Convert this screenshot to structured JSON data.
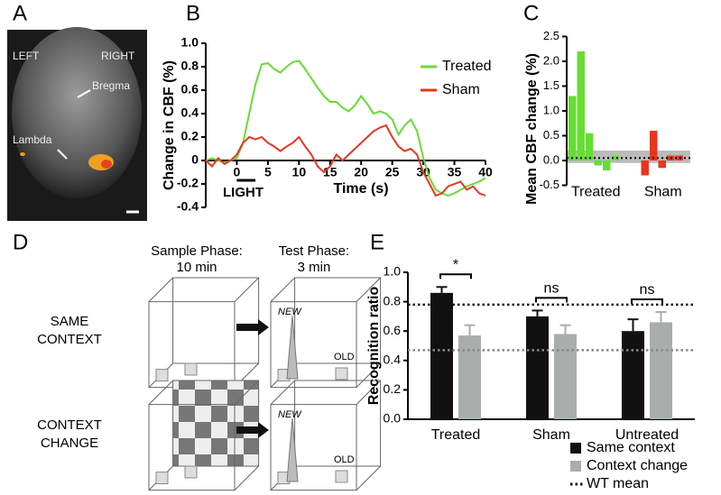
{
  "panel_labels": [
    "A",
    "B",
    "C",
    "D",
    "E"
  ],
  "panel_a": {
    "left": "LEFT",
    "right": "RIGHT",
    "bregma": "Bregma",
    "lambda": "Lambda"
  },
  "panel_d": {
    "sample_phase": [
      "Sample Phase:",
      "10 min"
    ],
    "test_phase": [
      "Test Phase:",
      "3 min"
    ],
    "same_context": [
      "SAME",
      "CONTEXT"
    ],
    "context_change": [
      "CONTEXT",
      "CHANGE"
    ],
    "new": "NEW",
    "old": "OLD"
  },
  "chart_data": [
    {
      "type": "line",
      "ylabel": "Change in CBF (%)",
      "xlabel": "Time (s)",
      "annotation": "LIGHT",
      "light_period": [
        0,
        3
      ],
      "x": [
        -5,
        -4,
        -3,
        -2,
        -1,
        0,
        1,
        2,
        3,
        4,
        5,
        6,
        7,
        8,
        9,
        10,
        11,
        12,
        13,
        14,
        15,
        16,
        17,
        18,
        19,
        20,
        21,
        22,
        23,
        24,
        25,
        26,
        27,
        28,
        29,
        30,
        31,
        32,
        33,
        34,
        35,
        36,
        37,
        38,
        39,
        40
      ],
      "series": [
        {
          "name": "Treated",
          "color": "#66dd33",
          "values": [
            0,
            0.02,
            0,
            -0.02,
            0,
            0.02,
            0.15,
            0.4,
            0.65,
            0.82,
            0.83,
            0.78,
            0.75,
            0.8,
            0.84,
            0.85,
            0.78,
            0.7,
            0.62,
            0.55,
            0.5,
            0.5,
            0.45,
            0.42,
            0.47,
            0.55,
            0.48,
            0.4,
            0.42,
            0.4,
            0.35,
            0.22,
            0.3,
            0.35,
            0.25,
            0.02,
            -0.15,
            -0.25,
            -0.28,
            -0.3,
            -0.28,
            -0.25,
            -0.22,
            -0.2,
            -0.18,
            -0.15
          ]
        },
        {
          "name": "Sham",
          "color": "#e8361e",
          "values": [
            0,
            -0.05,
            0.02,
            -0.03,
            0,
            0.05,
            0.15,
            0.2,
            0.18,
            0.2,
            0.15,
            0.12,
            0.08,
            0.12,
            0.15,
            0.2,
            0.12,
            0.05,
            -0.05,
            -0.1,
            -0.05,
            0.05,
            0,
            0.05,
            0.1,
            0.15,
            0.2,
            0.25,
            0.28,
            0.3,
            0.2,
            0.12,
            0.08,
            0.1,
            0.05,
            -0.1,
            -0.2,
            -0.3,
            -0.28,
            -0.22,
            -0.2,
            -0.18,
            -0.25,
            -0.22,
            -0.28,
            -0.3
          ]
        }
      ],
      "xlim": [
        -5,
        40
      ],
      "xticks": [
        0,
        5,
        10,
        15,
        20,
        25,
        30,
        35,
        40
      ],
      "ylim": [
        -0.4,
        1.0
      ],
      "yticks": [
        -0.4,
        -0.2,
        0,
        0.2,
        0.4,
        0.6,
        0.8,
        {
          "value": 1.0,
          "label": "1.0"
        }
      ],
      "legend": "upper right"
    },
    {
      "type": "bar",
      "ylabel": "Mean CBF change (%)",
      "series": [
        {
          "name": "Treated",
          "color": "#66dd33",
          "values": [
            1.3,
            2.2,
            0.55,
            -0.1,
            -0.2,
            0.1
          ]
        },
        {
          "name": "Sham",
          "color": "#e8361e",
          "values": [
            -0.3,
            0.6,
            -0.15,
            0.1,
            0.1
          ]
        }
      ],
      "reference_line": 0.05,
      "band": [
        -0.05,
        0.2
      ],
      "ylim": [
        -0.5,
        2.5
      ],
      "yticks": [
        -0.5,
        {
          "value": 0,
          "label": "0.0"
        },
        0.5,
        {
          "value": 1,
          "label": "1.0"
        },
        1.5,
        {
          "value": 2,
          "label": "2.0"
        },
        2.5
      ]
    },
    {
      "type": "grouped_bar",
      "ylabel": "Recognition ratio",
      "categories": [
        "Treated",
        "Sham",
        "Untreated"
      ],
      "series": [
        {
          "name": "Same context",
          "color": "#111111",
          "values": [
            0.86,
            0.7,
            0.6
          ],
          "errors": [
            0.04,
            0.04,
            0.08
          ]
        },
        {
          "name": "Context change",
          "color": "#a9aeac",
          "values": [
            0.57,
            0.58,
            0.66
          ],
          "errors": [
            0.07,
            0.06,
            0.07
          ]
        }
      ],
      "significance": [
        "*",
        "ns",
        "ns"
      ],
      "reference_lines": [
        {
          "name": "WT mean",
          "value": 0.78,
          "color": "#111111"
        },
        {
          "value": 0.47,
          "color": "#888888"
        }
      ],
      "ylim": [
        0,
        1.0
      ],
      "yticks": [
        {
          "value": 0,
          "label": "0.0"
        },
        0.2,
        0.4,
        0.6,
        0.8,
        {
          "value": 1.0,
          "label": "1.0"
        }
      ],
      "legend": "lower right"
    }
  ]
}
